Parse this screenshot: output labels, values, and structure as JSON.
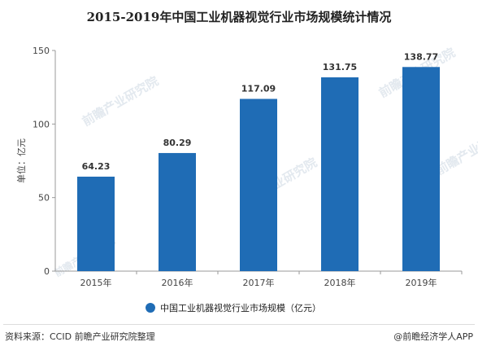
{
  "chart_data": {
    "type": "bar",
    "title": "2015-2019年中国工业机器视觉行业市场规模统计情况",
    "ylabel": "单位：亿元",
    "xlabel": "",
    "categories": [
      "2015年",
      "2016年",
      "2017年",
      "2018年",
      "2019年"
    ],
    "series": [
      {
        "name": "中国工业机器视觉行业市场规模（亿元）",
        "values": [
          64.23,
          80.29,
          117.09,
          131.75,
          138.77
        ]
      }
    ],
    "data_labels": [
      "64.23",
      "80.29",
      "117.09",
      "131.75",
      "138.77"
    ],
    "ylim": [
      0,
      150
    ],
    "yticks": [
      0,
      50,
      100,
      150
    ],
    "ytick_labels": [
      "0",
      "50",
      "100",
      "150"
    ],
    "grid": false,
    "legend_position": "bottom",
    "bar_color": "#1f6cb5"
  },
  "footer": {
    "source": "资料来源：CCID 前瞻产业研究院整理",
    "credit": "@前瞻经济学人APP"
  },
  "watermark": {
    "brand": "前瞻产业研究院"
  }
}
